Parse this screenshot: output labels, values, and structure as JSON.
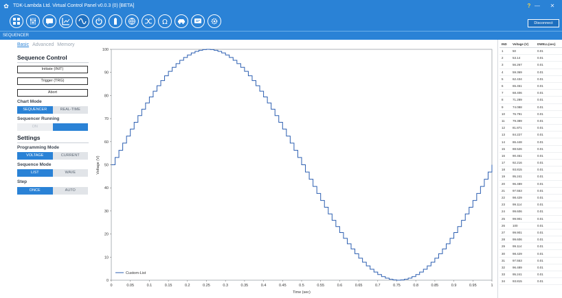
{
  "window": {
    "title": "TDK-Lambda Ltd. Virtual Control Panel v0.0.3 (0) [BETA]",
    "help_glyph": "?",
    "minimize_glyph": "—",
    "close_glyph": "✕"
  },
  "toolbar": {
    "tools": [
      "grid-icon",
      "sliders-icon",
      "chat-icon",
      "chart-icon",
      "wave-icon",
      "power-icon",
      "battery-icon",
      "globe-icon",
      "shuffle-icon",
      "omega-icon",
      "car-icon",
      "message-icon",
      "gear-icon"
    ],
    "disconnect_label": "Disconnect"
  },
  "mode_strip": {
    "label": "SEQUENCER"
  },
  "panel": {
    "tabs": [
      "Basic",
      "Advanced",
      "Memory"
    ],
    "sequence_control": "Sequence Control",
    "buttons": [
      "Initiate (INIT)",
      "Trigger (TRG)",
      "Abort"
    ],
    "chart_mode": "Chart Mode",
    "chart_mode_options": [
      "SEQUENCER",
      "REAL-TIME"
    ],
    "sequencer_running": "Sequencer Running",
    "running_options": [
      "ON",
      "OFF"
    ],
    "settings": "Settings",
    "programming_mode": "Programming Mode",
    "programming_options": [
      "VOLTAGE",
      "CURRENT"
    ],
    "sequence_mode": "Sequence Mode",
    "sequence_options": [
      "LIST",
      "WAVE"
    ],
    "step": "Step",
    "step_options": [
      "ONCE",
      "AUTO"
    ]
  },
  "chart_data": {
    "type": "line",
    "ylabel": "Voltage (V)",
    "xlabel": "Time (sec)",
    "legend": "Custom-List",
    "legend_position": "bottom-left",
    "ylim": [
      0,
      100
    ],
    "xlim": [
      0,
      1
    ],
    "yticks": [
      0,
      10,
      20,
      30,
      40,
      50,
      60,
      70,
      80,
      90,
      100
    ],
    "xticks": [
      "0",
      "0.05",
      "0.1",
      "0.15",
      "0.2",
      "0.25",
      "0.3",
      "0.35",
      "0.4",
      "0.45",
      "0.5",
      "0.55",
      "0.6",
      "0.65",
      "0.7",
      "0.75",
      "0.8",
      "0.85",
      "0.9",
      "0.95",
      "1"
    ],
    "step_interval": 0.01,
    "series_color": "#2a5db0",
    "series": [
      {
        "values": [
          50,
          53.14,
          56.267,
          59.369,
          62.434,
          65.451,
          68.406,
          71.289,
          74.088,
          76.791,
          79.389,
          81.871,
          84.227,
          86.448,
          88.526,
          90.451,
          92.216,
          93.815,
          95.241,
          96.489,
          97.553,
          98.429,
          99.114,
          99.606,
          99.901,
          100,
          99.901,
          99.606,
          99.114,
          98.429,
          97.553,
          96.489,
          95.241,
          93.815,
          92.216,
          90.451,
          88.526,
          86.448,
          84.227,
          81.871,
          79.389,
          76.791,
          74.088,
          71.289,
          68.406,
          65.451,
          62.434,
          59.369,
          56.267,
          53.14,
          50,
          46.86,
          43.733,
          40.631,
          37.566,
          34.549,
          31.594,
          28.711,
          25.912,
          23.209,
          20.611,
          18.129,
          15.773,
          13.552,
          11.474,
          9.549,
          7.784,
          6.185,
          4.759,
          3.511,
          2.447,
          1.571,
          0.886,
          0.394,
          0.099,
          0,
          0.099,
          0.394,
          0.886,
          1.571,
          2.447,
          3.511,
          4.759,
          6.185,
          7.784,
          9.549,
          11.474,
          13.552,
          15.773,
          18.129,
          20.611,
          23.209,
          25.912,
          28.711,
          31.594,
          34.549,
          37.566,
          40.631,
          43.733,
          46.86,
          50
        ]
      }
    ]
  },
  "table": {
    "headers": [
      "IND",
      "Voltage (V)",
      "DWELL(sec)"
    ],
    "rows": [
      [
        "1",
        "50",
        "0.01"
      ],
      [
        "2",
        "53.14",
        "0.01"
      ],
      [
        "3",
        "56.267",
        "0.01"
      ],
      [
        "4",
        "59.369",
        "0.01"
      ],
      [
        "5",
        "62.434",
        "0.01"
      ],
      [
        "6",
        "65.451",
        "0.01"
      ],
      [
        "7",
        "68.406",
        "0.01"
      ],
      [
        "8",
        "71.289",
        "0.01"
      ],
      [
        "9",
        "74.088",
        "0.01"
      ],
      [
        "10",
        "76.791",
        "0.01"
      ],
      [
        "11",
        "79.389",
        "0.01"
      ],
      [
        "12",
        "81.871",
        "0.01"
      ],
      [
        "13",
        "84.227",
        "0.01"
      ],
      [
        "14",
        "86.448",
        "0.01"
      ],
      [
        "15",
        "88.526",
        "0.01"
      ],
      [
        "16",
        "90.451",
        "0.01"
      ],
      [
        "17",
        "92.216",
        "0.01"
      ],
      [
        "18",
        "93.815",
        "0.01"
      ],
      [
        "19",
        "95.241",
        "0.01"
      ],
      [
        "20",
        "96.489",
        "0.01"
      ],
      [
        "21",
        "97.553",
        "0.01"
      ],
      [
        "22",
        "98.429",
        "0.01"
      ],
      [
        "23",
        "99.114",
        "0.01"
      ],
      [
        "24",
        "99.606",
        "0.01"
      ],
      [
        "25",
        "99.901",
        "0.01"
      ],
      [
        "26",
        "100",
        "0.01"
      ],
      [
        "27",
        "99.901",
        "0.01"
      ],
      [
        "28",
        "99.606",
        "0.01"
      ],
      [
        "29",
        "99.114",
        "0.01"
      ],
      [
        "30",
        "98.429",
        "0.01"
      ],
      [
        "31",
        "97.553",
        "0.01"
      ],
      [
        "32",
        "96.489",
        "0.01"
      ],
      [
        "33",
        "95.241",
        "0.01"
      ],
      [
        "34",
        "93.815",
        "0.01"
      ]
    ]
  }
}
